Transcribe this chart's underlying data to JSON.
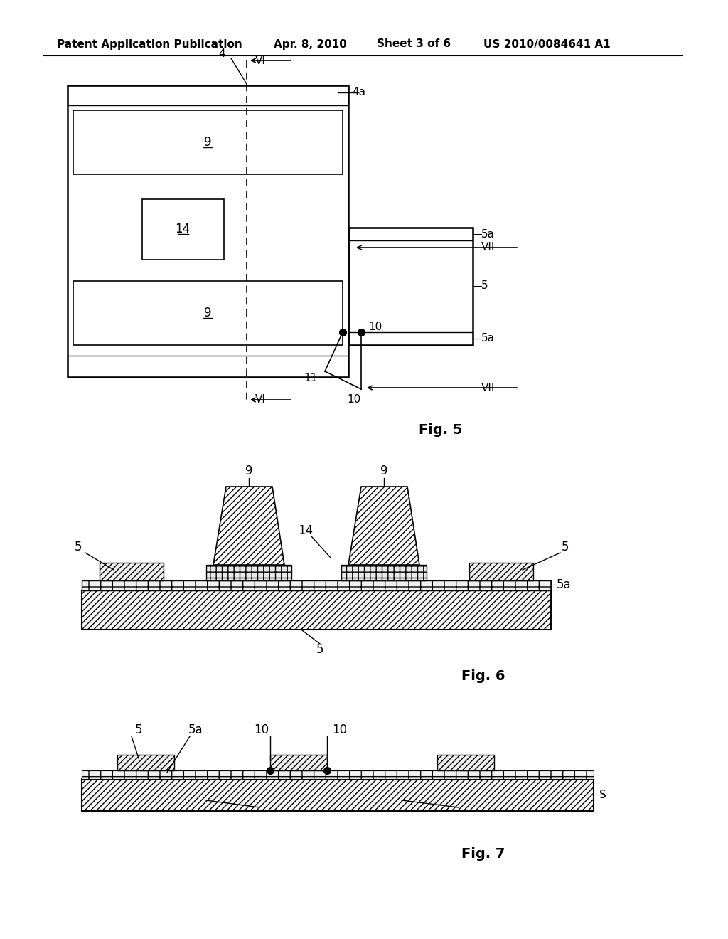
{
  "bg_color": "#ffffff",
  "header_text": "Patent Application Publication",
  "header_date": "Apr. 8, 2010",
  "header_sheet": "Sheet 3 of 6",
  "header_patent": "US 2010/0084641 A1",
  "fig5_caption": "Fig. 5",
  "fig6_caption": "Fig. 6",
  "fig7_caption": "Fig. 7"
}
